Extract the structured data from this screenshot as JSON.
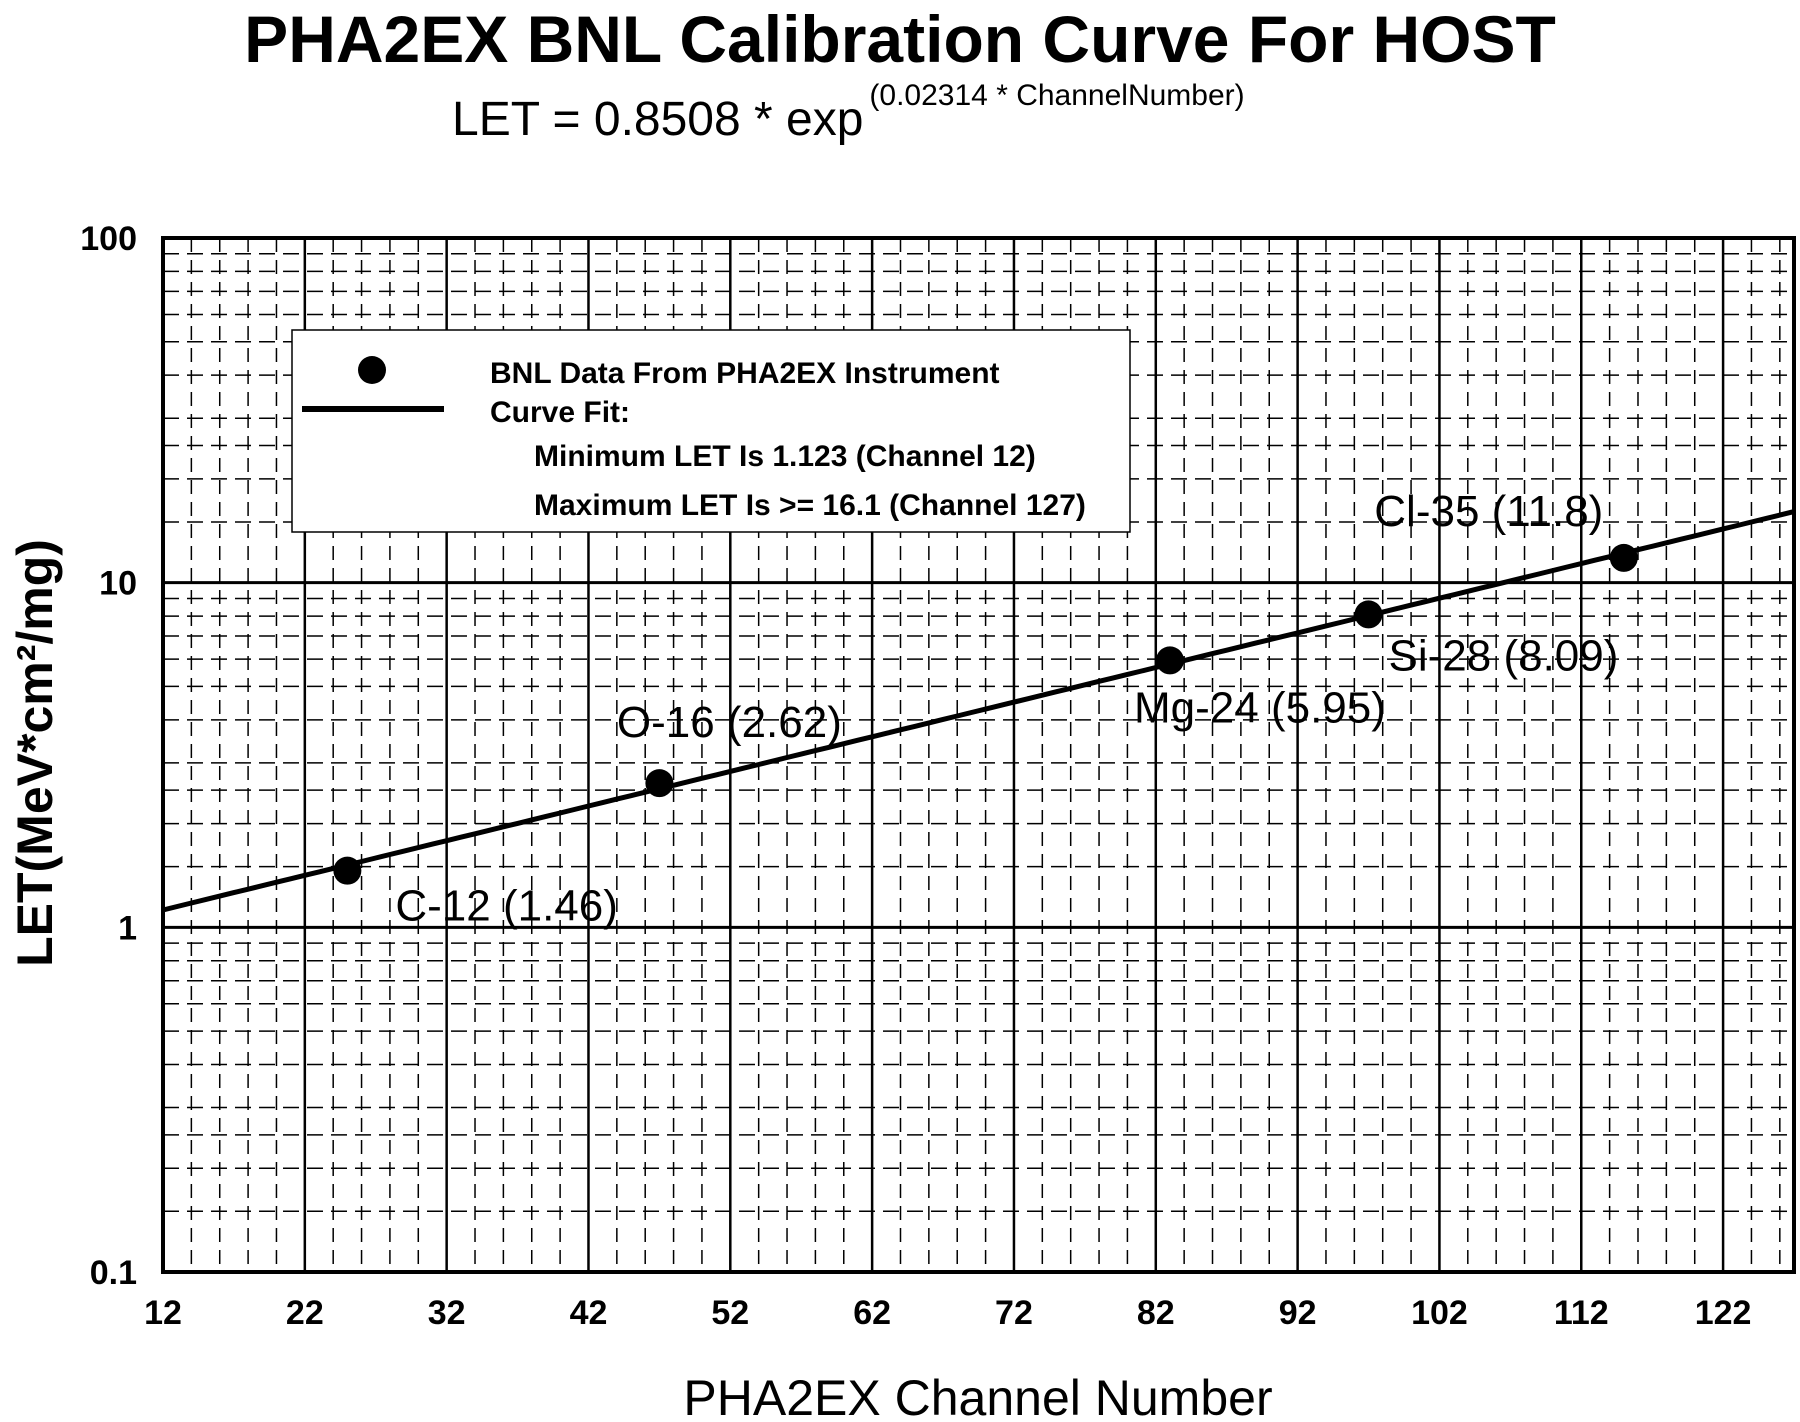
{
  "chart_data": {
    "type": "scatter",
    "title": "PHA2EX BNL Calibration Curve For HOST",
    "subtitle": {
      "prefix": "LET = 0.8508 * exp",
      "exponent": "(0.02314 * ChannelNumber)"
    },
    "xlabel": "PHA2EX Channel Number",
    "ylabel": "LET(MeV*cm²/mg)",
    "xlim": [
      12,
      127
    ],
    "ylim": [
      0.1,
      100
    ],
    "yscale": "log",
    "grid": true,
    "x_ticks": [
      "12",
      "22",
      "32",
      "42",
      "52",
      "62",
      "72",
      "82",
      "92",
      "102",
      "112",
      "122"
    ],
    "y_ticks": [
      "0.1",
      "1",
      "10",
      "100"
    ],
    "series": [
      {
        "name": "BNL Data From PHA2EX Instrument",
        "kind": "points",
        "x": [
          25,
          47,
          83,
          97,
          115
        ],
        "y": [
          1.46,
          2.62,
          5.95,
          8.09,
          11.8
        ],
        "labels": [
          "C-12 (1.46)",
          "O-16 (2.62)",
          "Mg-24 (5.95)",
          "Si-28 (8.09)",
          "Cl-35 (11.8)"
        ]
      },
      {
        "name": "Curve Fit:",
        "kind": "curve",
        "fit": {
          "a": 0.8508,
          "b": 0.02314
        }
      }
    ],
    "legend": {
      "position": "top-left",
      "entries": [
        "BNL Data From PHA2EX Instrument",
        "Curve Fit:",
        "Minimum LET Is 1.123 (Channel 12)",
        "Maximum LET Is >= 16.1 (Channel 127)"
      ]
    }
  }
}
